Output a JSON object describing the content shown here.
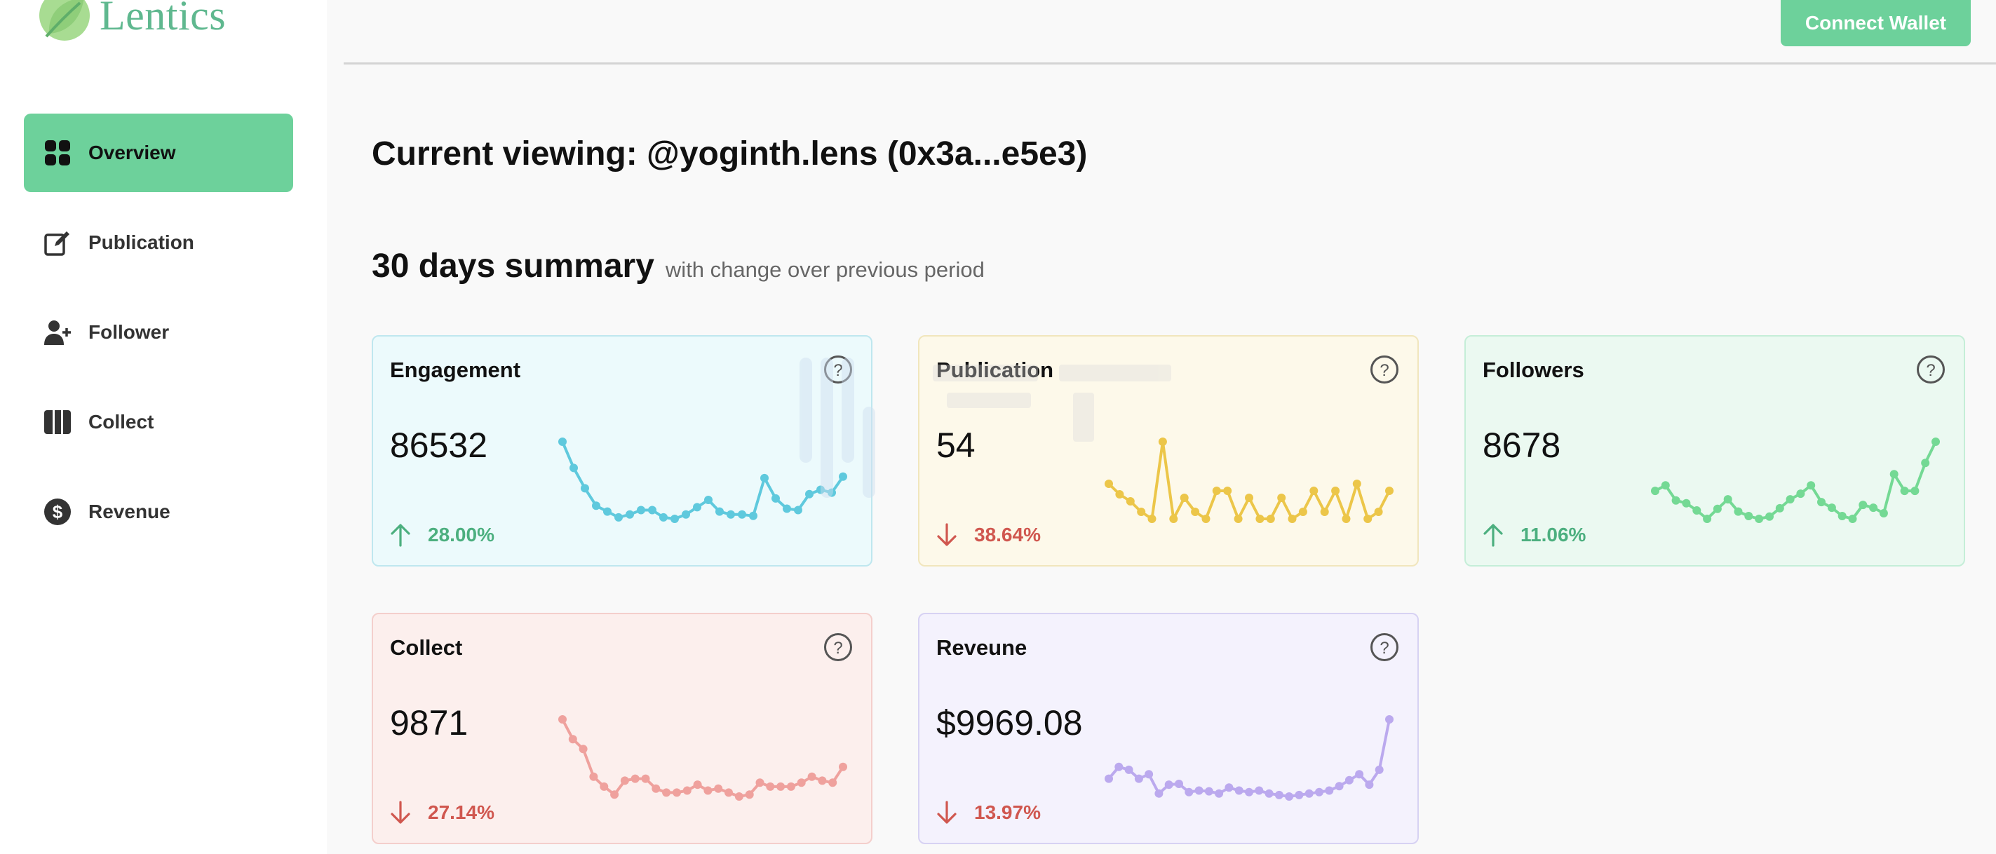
{
  "app": {
    "name": "Lentics"
  },
  "header": {
    "connect_label": "Connect Wallet"
  },
  "sidebar": {
    "items": [
      {
        "label": "Overview",
        "icon": "grid-icon",
        "active": true
      },
      {
        "label": "Publication",
        "icon": "edit-icon",
        "active": false
      },
      {
        "label": "Follower",
        "icon": "user-plus-icon",
        "active": false
      },
      {
        "label": "Collect",
        "icon": "columns-icon",
        "active": false
      },
      {
        "label": "Revenue",
        "icon": "dollar-circle-icon",
        "active": false
      }
    ]
  },
  "main": {
    "viewing": "Current viewing: @yoginth.lens (0x3a...e5e3)",
    "summary_title": "30 days summary",
    "summary_sub": "with change over previous period"
  },
  "colors": {
    "accent": "#6dd19b",
    "up": "#4caf7f",
    "down": "#d0574f"
  },
  "cards": [
    {
      "title": "Engagement",
      "value": "86532",
      "change": "28.00%",
      "direction": "up",
      "bg": "#ecfafc",
      "border": "#bfe7ef",
      "line": "#5fc9dd",
      "series": [
        90,
        72,
        58,
        46,
        42,
        38,
        40,
        43,
        43,
        38,
        37,
        40,
        45,
        50,
        42,
        40,
        40,
        39,
        65,
        51,
        44,
        43,
        54,
        57,
        55,
        66
      ]
    },
    {
      "title": "Publication",
      "value": "54",
      "change": "38.64%",
      "direction": "down",
      "bg": "#fdf9ea",
      "border": "#f1e6bd",
      "line": "#ecc649",
      "series": [
        5,
        3.5,
        2.5,
        1,
        0,
        11,
        0,
        3,
        1,
        0,
        4,
        4,
        0,
        3,
        0,
        0,
        3,
        0,
        1,
        4,
        1,
        4,
        0,
        5,
        0,
        1,
        4
      ]
    },
    {
      "title": "Followers",
      "value": "8678",
      "change": "11.06%",
      "direction": "up",
      "bg": "#ebf9f1",
      "border": "#c5eed8",
      "line": "#74d994",
      "series": [
        210,
        220,
        193,
        188,
        175,
        160,
        178,
        195,
        173,
        165,
        160,
        164,
        179,
        195,
        205,
        220,
        190,
        180,
        165,
        160,
        185,
        180,
        170,
        240,
        210,
        210,
        260,
        298
      ]
    },
    {
      "title": "Collect",
      "value": "9871",
      "change": "27.14%",
      "direction": "down",
      "bg": "#fcefed",
      "border": "#f4cfcc",
      "line": "#efa19d",
      "series": [
        55,
        45,
        40,
        26,
        21,
        17,
        24,
        25,
        25,
        20,
        18,
        18,
        19,
        22,
        19,
        20,
        18,
        16,
        17,
        23,
        21,
        21,
        21,
        23,
        26,
        24,
        23,
        31
      ]
    },
    {
      "title": "Reveune",
      "value": "$9969.08",
      "change": "13.97%",
      "direction": "down",
      "bg": "#f4f2fd",
      "border": "#d7d2f3",
      "line": "#bba9ee",
      "series": [
        200,
        280,
        260,
        200,
        230,
        100,
        160,
        165,
        110,
        120,
        115,
        100,
        140,
        120,
        110,
        120,
        100,
        90,
        80,
        90,
        100,
        110,
        120,
        150,
        190,
        230,
        160,
        260,
        600
      ]
    }
  ]
}
